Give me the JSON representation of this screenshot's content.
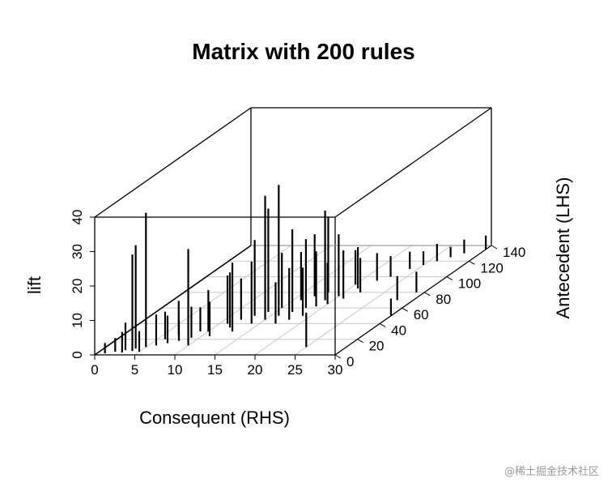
{
  "watermark": "@稀土掘金技术社区",
  "chart_data": {
    "type": "scatter3d",
    "title": "Matrix with 200 rules",
    "xlabel": "Consequent (RHS)",
    "ylabel": "Antecedent (LHS)",
    "zlabel": "lift",
    "xlim": [
      0,
      30
    ],
    "ylim": [
      0,
      140
    ],
    "zlim": [
      0,
      40
    ],
    "x_ticks": [
      "0",
      "5",
      "10",
      "15",
      "20",
      "25",
      "30"
    ],
    "y_ticks": [
      "0",
      "20",
      "40",
      "60",
      "80",
      "100",
      "120",
      "140"
    ],
    "z_ticks": [
      "0",
      "10",
      "20",
      "30",
      "40"
    ],
    "grid": true,
    "rules": [
      {
        "x": 1,
        "y": 2,
        "lift": 3
      },
      {
        "x": 2,
        "y": 4,
        "lift": 4
      },
      {
        "x": 3,
        "y": 3,
        "lift": 6
      },
      {
        "x": 3,
        "y": 6,
        "lift": 8
      },
      {
        "x": 4,
        "y": 5,
        "lift": 28
      },
      {
        "x": 4,
        "y": 8,
        "lift": 30
      },
      {
        "x": 5,
        "y": 10,
        "lift": 39
      },
      {
        "x": 5,
        "y": 4,
        "lift": 6
      },
      {
        "x": 6,
        "y": 12,
        "lift": 9
      },
      {
        "x": 6,
        "y": 20,
        "lift": 8
      },
      {
        "x": 7,
        "y": 15,
        "lift": 8
      },
      {
        "x": 7,
        "y": 25,
        "lift": 10
      },
      {
        "x": 8,
        "y": 18,
        "lift": 6
      },
      {
        "x": 9,
        "y": 30,
        "lift": 7
      },
      {
        "x": 9,
        "y": 22,
        "lift": 9
      },
      {
        "x": 10,
        "y": 12,
        "lift": 28
      },
      {
        "x": 10,
        "y": 30,
        "lift": 12
      },
      {
        "x": 11,
        "y": 40,
        "lift": 14
      },
      {
        "x": 11,
        "y": 24,
        "lift": 10
      },
      {
        "x": 12,
        "y": 35,
        "lift": 16
      },
      {
        "x": 12,
        "y": 45,
        "lift": 12
      },
      {
        "x": 13,
        "y": 50,
        "lift": 22
      },
      {
        "x": 13,
        "y": 30,
        "lift": 20
      },
      {
        "x": 14,
        "y": 55,
        "lift": 30
      },
      {
        "x": 14,
        "y": 40,
        "lift": 18
      },
      {
        "x": 15,
        "y": 45,
        "lift": 36
      },
      {
        "x": 15,
        "y": 60,
        "lift": 16
      },
      {
        "x": 16,
        "y": 50,
        "lift": 38
      },
      {
        "x": 16,
        "y": 70,
        "lift": 14
      },
      {
        "x": 17,
        "y": 55,
        "lift": 24
      },
      {
        "x": 17,
        "y": 40,
        "lift": 12
      },
      {
        "x": 17,
        "y": 75,
        "lift": 18
      },
      {
        "x": 18,
        "y": 60,
        "lift": 20
      },
      {
        "x": 18,
        "y": 45,
        "lift": 15
      },
      {
        "x": 18,
        "y": 80,
        "lift": 22
      },
      {
        "x": 19,
        "y": 62,
        "lift": 16
      },
      {
        "x": 19,
        "y": 70,
        "lift": 26
      },
      {
        "x": 19,
        "y": 50,
        "lift": 14
      },
      {
        "x": 20,
        "y": 65,
        "lift": 12
      },
      {
        "x": 20,
        "y": 75,
        "lift": 18
      },
      {
        "x": 20,
        "y": 90,
        "lift": 10
      },
      {
        "x": 21,
        "y": 72,
        "lift": 14
      },
      {
        "x": 21,
        "y": 85,
        "lift": 12
      },
      {
        "x": 22,
        "y": 80,
        "lift": 10
      },
      {
        "x": 22,
        "y": 95,
        "lift": 8
      },
      {
        "x": 23,
        "y": 100,
        "lift": 6
      },
      {
        "x": 24,
        "y": 110,
        "lift": 5
      },
      {
        "x": 25,
        "y": 10,
        "lift": 10
      },
      {
        "x": 25,
        "y": 115,
        "lift": 4
      },
      {
        "x": 26,
        "y": 120,
        "lift": 5
      },
      {
        "x": 27,
        "y": 125,
        "lift": 3
      },
      {
        "x": 28,
        "y": 70,
        "lift": 7
      },
      {
        "x": 28,
        "y": 130,
        "lift": 4
      },
      {
        "x": 29,
        "y": 80,
        "lift": 6
      },
      {
        "x": 30,
        "y": 135,
        "lift": 4
      },
      {
        "x": 30,
        "y": 50,
        "lift": 5
      }
    ]
  }
}
